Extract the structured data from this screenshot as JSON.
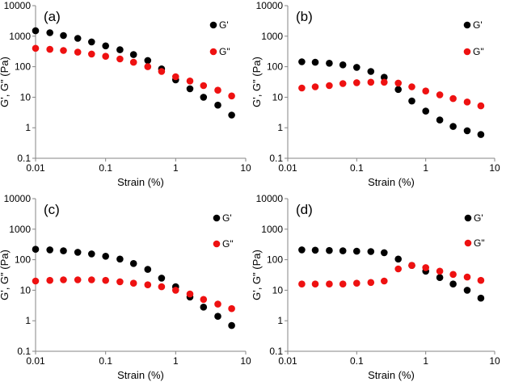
{
  "colors": {
    "g_prime": "#000000",
    "g_double_prime": "#ee1111",
    "axis": "#868686"
  },
  "chart_data": [
    {
      "type": "scatter",
      "panel_label": "(a)",
      "xlabel": "Strain (%)",
      "ylabel": "G', G\" (Pa)",
      "xscale": "log",
      "yscale": "log",
      "xlim": [
        0.01,
        10
      ],
      "ylim": [
        0.1,
        10000
      ],
      "x_tick_labels": [
        "0.01",
        "0.1",
        "1",
        "10"
      ],
      "y_tick_labels": [
        "0.1",
        "1",
        "10",
        "100",
        "1000",
        "10000"
      ],
      "legend_position": "top-right",
      "series": [
        {
          "name": "G'",
          "x": [
            0.01,
            0.016,
            0.025,
            0.04,
            0.063,
            0.1,
            0.16,
            0.25,
            0.4,
            0.63,
            1.0,
            1.6,
            2.5,
            4.0,
            6.3
          ],
          "y": [
            1500,
            1300,
            1050,
            850,
            650,
            480,
            360,
            250,
            160,
            85,
            37,
            19,
            10,
            5.5,
            2.6
          ]
        },
        {
          "name": "G\"",
          "x": [
            0.01,
            0.016,
            0.025,
            0.04,
            0.063,
            0.1,
            0.16,
            0.25,
            0.4,
            0.63,
            1.0,
            1.6,
            2.5,
            4.0,
            6.3
          ],
          "y": [
            400,
            370,
            340,
            300,
            260,
            220,
            180,
            140,
            100,
            70,
            47,
            34,
            24,
            17,
            11
          ]
        }
      ]
    },
    {
      "type": "scatter",
      "panel_label": "(b)",
      "xlabel": "Strain (%)",
      "ylabel": "G', G\" (Pa)",
      "xscale": "log",
      "yscale": "log",
      "xlim": [
        0.01,
        10
      ],
      "ylim": [
        0.1,
        10000
      ],
      "x_tick_labels": [
        "0.01",
        "0.1",
        "1",
        "10"
      ],
      "y_tick_labels": [
        "0.1",
        "1",
        "10",
        "100",
        "1000",
        "10000"
      ],
      "legend_position": "top-right",
      "series": [
        {
          "name": "G'",
          "x": [
            0.016,
            0.025,
            0.04,
            0.063,
            0.1,
            0.16,
            0.25,
            0.4,
            0.63,
            1.0,
            1.6,
            2.5,
            4.0,
            6.3
          ],
          "y": [
            145,
            140,
            130,
            115,
            95,
            70,
            45,
            18,
            7.5,
            3.5,
            1.8,
            1.1,
            0.8,
            0.6
          ]
        },
        {
          "name": "G\"",
          "x": [
            0.016,
            0.025,
            0.04,
            0.063,
            0.1,
            0.16,
            0.25,
            0.4,
            0.63,
            1.0,
            1.6,
            2.5,
            4.0,
            6.3
          ],
          "y": [
            20,
            22,
            24,
            28,
            30,
            31,
            31,
            29,
            22,
            16,
            12,
            9,
            7,
            5.2
          ]
        }
      ]
    },
    {
      "type": "scatter",
      "panel_label": "(c)",
      "xlabel": "Strain (%)",
      "ylabel": "G', G\" (Pa)",
      "xscale": "log",
      "yscale": "log",
      "xlim": [
        0.01,
        10
      ],
      "ylim": [
        0.1,
        10000
      ],
      "x_tick_labels": [
        "0.01",
        "0.1",
        "1",
        "10"
      ],
      "y_tick_labels": [
        "0.1",
        "1",
        "10",
        "100",
        "1000",
        "10000"
      ],
      "legend_position": "top-right",
      "series": [
        {
          "name": "G'",
          "x": [
            0.01,
            0.016,
            0.025,
            0.04,
            0.063,
            0.1,
            0.16,
            0.25,
            0.4,
            0.63,
            1.0,
            1.6,
            2.5,
            4.0,
            6.3
          ],
          "y": [
            220,
            210,
            195,
            175,
            155,
            130,
            105,
            75,
            48,
            25,
            13,
            6,
            2.8,
            1.4,
            0.7
          ]
        },
        {
          "name": "G\"",
          "x": [
            0.01,
            0.016,
            0.025,
            0.04,
            0.063,
            0.1,
            0.16,
            0.25,
            0.4,
            0.63,
            1.0,
            1.6,
            2.5,
            4.0,
            6.3
          ],
          "y": [
            20,
            21,
            22,
            22,
            22,
            21,
            19,
            17,
            15,
            13,
            10,
            7.5,
            5,
            3.5,
            2.5
          ]
        }
      ]
    },
    {
      "type": "scatter",
      "panel_label": "(d)",
      "xlabel": "Strain (%)",
      "ylabel": "G', G\" (Pa)",
      "xscale": "log",
      "yscale": "log",
      "xlim": [
        0.01,
        10
      ],
      "ylim": [
        0.1,
        10000
      ],
      "x_tick_labels": [
        "0.01",
        "0.1",
        "1",
        "10"
      ],
      "y_tick_labels": [
        "0.1",
        "1",
        "10",
        "100",
        "1000",
        "10000"
      ],
      "legend_position": "top-right",
      "series": [
        {
          "name": "G'",
          "x": [
            0.016,
            0.025,
            0.04,
            0.063,
            0.1,
            0.16,
            0.25,
            0.4,
            0.63,
            1.0,
            1.6,
            2.5,
            4.0,
            6.3
          ],
          "y": [
            210,
            205,
            200,
            195,
            190,
            185,
            170,
            105,
            65,
            42,
            26,
            16,
            10,
            5.5
          ]
        },
        {
          "name": "G\"",
          "x": [
            0.016,
            0.025,
            0.04,
            0.063,
            0.1,
            0.16,
            0.25,
            0.4,
            0.63,
            1.0,
            1.6,
            2.5,
            4.0,
            6.3
          ],
          "y": [
            16,
            16,
            16,
            16,
            17,
            18,
            20,
            50,
            65,
            55,
            42,
            33,
            27,
            21
          ]
        }
      ]
    }
  ]
}
